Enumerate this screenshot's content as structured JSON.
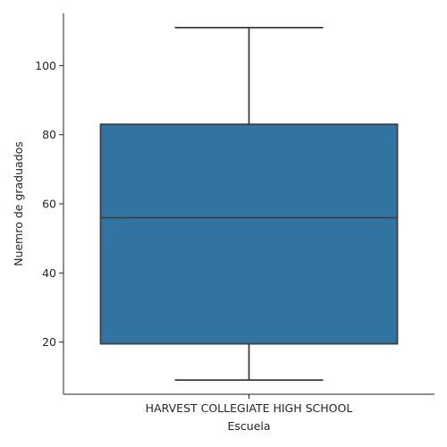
{
  "chart_data": {
    "type": "box",
    "xlabel": "Escuela",
    "ylabel": "Nuemro de graduados",
    "categories": [
      "HARVEST COLLEGIATE HIGH SCHOOL"
    ],
    "boxes": [
      {
        "category": "HARVEST COLLEGIATE HIGH SCHOOL",
        "whisker_low": 9,
        "q1": 19.5,
        "median": 56,
        "q3": 83,
        "whisker_high": 111,
        "color": "#3274a1"
      }
    ],
    "ylim": [
      4.9,
      115.1
    ],
    "yticks": [
      20,
      40,
      60,
      80,
      100
    ],
    "grid": false,
    "line_color": "#3f3f3f"
  }
}
